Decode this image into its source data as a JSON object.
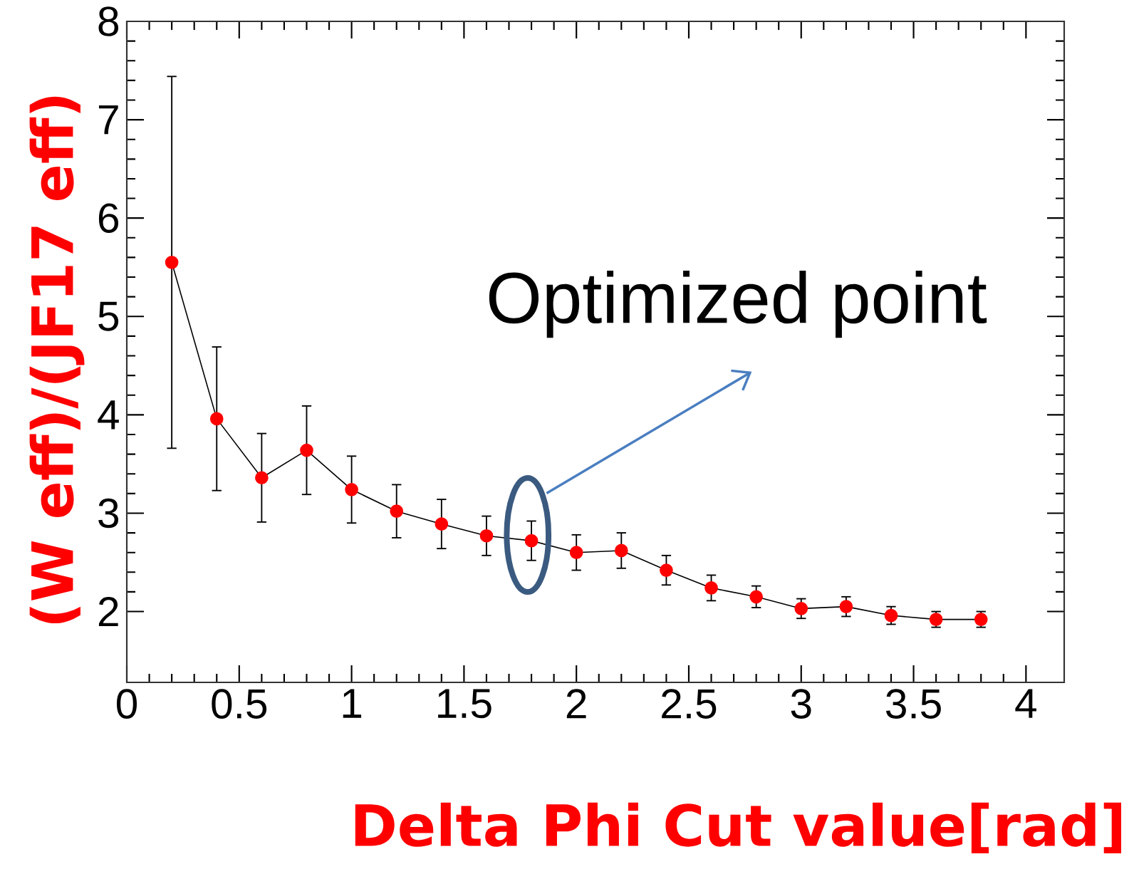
{
  "chart_data": {
    "type": "line",
    "xlabel": "Delta Phi Cut value[rad]",
    "ylabel": "(W eff)/(JF17 eff)",
    "x": [
      0.2,
      0.4,
      0.6,
      0.8,
      1.0,
      1.2,
      1.4,
      1.6,
      1.8,
      2.0,
      2.2,
      2.4,
      2.6,
      2.8,
      3.0,
      3.2,
      3.4,
      3.6,
      3.8
    ],
    "values": [
      5.55,
      3.96,
      3.36,
      3.64,
      3.24,
      3.02,
      2.89,
      2.77,
      2.72,
      2.6,
      2.62,
      2.42,
      2.24,
      2.15,
      2.03,
      2.05,
      1.96,
      1.92,
      1.92
    ],
    "errors": [
      1.89,
      0.73,
      0.45,
      0.45,
      0.34,
      0.27,
      0.25,
      0.2,
      0.2,
      0.18,
      0.18,
      0.15,
      0.13,
      0.11,
      0.1,
      0.1,
      0.09,
      0.08,
      0.08
    ],
    "color": "#ff0000",
    "marker": "circle",
    "line_style": "solid",
    "xlim": [
      0,
      4.17
    ],
    "ylim": [
      1.28,
      8
    ],
    "xticks": [
      0,
      0.5,
      1,
      1.5,
      2,
      2.5,
      3,
      3.5,
      4
    ],
    "yticks": [
      2,
      3,
      4,
      5,
      6,
      7,
      8
    ],
    "annotations": [
      {
        "text": "Optimized point",
        "x": 1.8,
        "y": 2.72
      }
    ]
  }
}
